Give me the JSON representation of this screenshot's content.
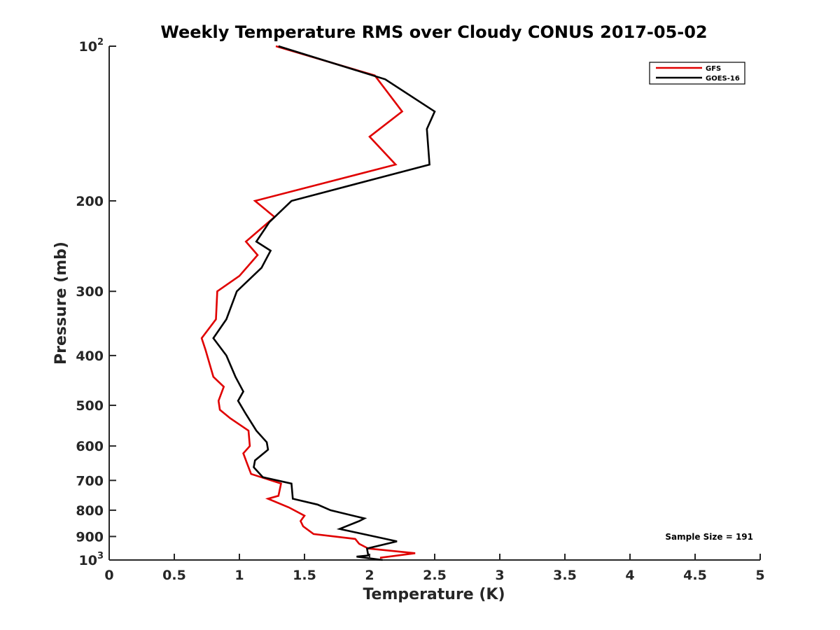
{
  "chart_data": {
    "type": "line",
    "title": "Weekly Temperature RMS over Cloudy CONUS 2017-05-02",
    "xlabel": "Temperature (K)",
    "ylabel": "Pressure (mb)",
    "xlim": [
      0,
      5
    ],
    "ylim": [
      100,
      1000
    ],
    "y_scale": "log",
    "y_reversed": true,
    "x_ticks": [
      0,
      0.5,
      1,
      1.5,
      2,
      2.5,
      3,
      3.5,
      4,
      4.5,
      5
    ],
    "x_tick_labels": [
      "0",
      "0.5",
      "1",
      "1.5",
      "2",
      "2.5",
      "3",
      "3.5",
      "4",
      "4.5",
      "5"
    ],
    "y_ticks": [
      {
        "value": 100,
        "base": "10",
        "exp": "2"
      },
      {
        "value": 200,
        "label": "200"
      },
      {
        "value": 300,
        "label": "300"
      },
      {
        "value": 400,
        "label": "400"
      },
      {
        "value": 500,
        "label": "500"
      },
      {
        "value": 600,
        "label": "600"
      },
      {
        "value": 700,
        "label": "700"
      },
      {
        "value": 800,
        "label": "800"
      },
      {
        "value": 900,
        "label": "900"
      },
      {
        "value": 1000,
        "base": "10",
        "exp": "3"
      }
    ],
    "grid": false,
    "legend_position": "top-right",
    "annotation": "Sample Size = 191",
    "series": [
      {
        "name": "GFS",
        "color": "#e00000",
        "points": [
          [
            1.28,
            100
          ],
          [
            2.04,
            114
          ],
          [
            2.25,
            134
          ],
          [
            2.0,
            150
          ],
          [
            2.2,
            170
          ],
          [
            1.12,
            200
          ],
          [
            1.27,
            215
          ],
          [
            1.05,
            240
          ],
          [
            1.14,
            255
          ],
          [
            1.0,
            280
          ],
          [
            0.83,
            300
          ],
          [
            0.82,
            340
          ],
          [
            0.71,
            370
          ],
          [
            0.74,
            390
          ],
          [
            0.8,
            440
          ],
          [
            0.88,
            460
          ],
          [
            0.84,
            490
          ],
          [
            0.85,
            510
          ],
          [
            0.93,
            530
          ],
          [
            1.07,
            560
          ],
          [
            1.08,
            600
          ],
          [
            1.03,
            620
          ],
          [
            1.06,
            650
          ],
          [
            1.09,
            680
          ],
          [
            1.32,
            710
          ],
          [
            1.3,
            750
          ],
          [
            1.22,
            760
          ],
          [
            1.38,
            790
          ],
          [
            1.5,
            820
          ],
          [
            1.47,
            840
          ],
          [
            1.49,
            860
          ],
          [
            1.57,
            890
          ],
          [
            1.89,
            910
          ],
          [
            1.92,
            930
          ],
          [
            1.99,
            950
          ],
          [
            2.35,
            970
          ],
          [
            2.08,
            990
          ]
        ]
      },
      {
        "name": "GOES-16",
        "color": "#000000",
        "points": [
          [
            1.3,
            100
          ],
          [
            2.12,
            116
          ],
          [
            2.5,
            134
          ],
          [
            2.44,
            145
          ],
          [
            2.46,
            170
          ],
          [
            1.4,
            200
          ],
          [
            1.23,
            220
          ],
          [
            1.13,
            240
          ],
          [
            1.24,
            250
          ],
          [
            1.17,
            270
          ],
          [
            0.98,
            300
          ],
          [
            0.9,
            340
          ],
          [
            0.8,
            370
          ],
          [
            0.9,
            400
          ],
          [
            0.97,
            440
          ],
          [
            1.03,
            470
          ],
          [
            0.99,
            490
          ],
          [
            1.05,
            520
          ],
          [
            1.13,
            560
          ],
          [
            1.21,
            590
          ],
          [
            1.22,
            610
          ],
          [
            1.12,
            640
          ],
          [
            1.11,
            660
          ],
          [
            1.18,
            690
          ],
          [
            1.4,
            710
          ],
          [
            1.41,
            760
          ],
          [
            1.6,
            780
          ],
          [
            1.7,
            800
          ],
          [
            1.96,
            830
          ],
          [
            1.92,
            840
          ],
          [
            1.77,
            870
          ],
          [
            1.95,
            890
          ],
          [
            2.21,
            920
          ],
          [
            1.98,
            950
          ],
          [
            1.99,
            980
          ],
          [
            1.9,
            985
          ],
          [
            2.1,
            1000
          ]
        ]
      }
    ]
  }
}
